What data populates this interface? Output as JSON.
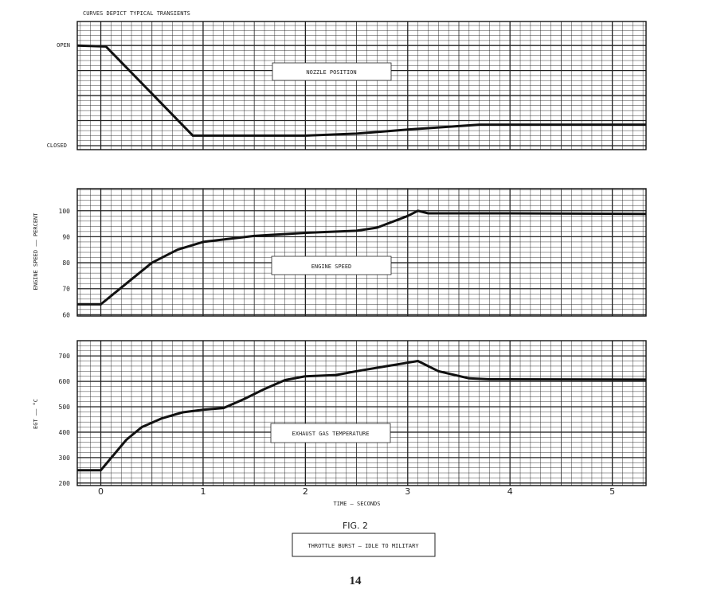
{
  "header_note": "CURVES DEPICT TYPICAL TRANSIENTS",
  "figure_label": "FIG. 2",
  "figure_caption": "THROTTLE BURST — IDLE TO MILITARY",
  "page_number": "14",
  "x_axis": {
    "label": "TIME — SECONDS",
    "ticks": [
      "0",
      "1",
      "2",
      "3",
      "4",
      "5"
    ],
    "xlim": [
      -0.23,
      5.33
    ]
  },
  "chart_data": [
    {
      "type": "line",
      "title": "NOZZLE POSITION",
      "ylabel": "",
      "y_tick_labels": {
        "open": "OPEN",
        "closed": "CLOSED"
      },
      "ylim": [
        -0.04,
        1.24
      ],
      "grid": true,
      "x": [
        -0.23,
        0.05,
        0.9,
        1.5,
        2.0,
        2.5,
        3.0,
        3.7,
        5.33
      ],
      "values": [
        1.0,
        0.99,
        0.1,
        0.1,
        0.1,
        0.12,
        0.16,
        0.21,
        0.21
      ]
    },
    {
      "type": "line",
      "title": "ENGINE SPEED",
      "ylabel": "ENGINE SPEED —— PERCENT",
      "y_ticks": [
        "60",
        "70",
        "80",
        "90",
        "100"
      ],
      "ylim": [
        59.5,
        108.5
      ],
      "grid": true,
      "x": [
        -0.23,
        0.0,
        0.25,
        0.5,
        0.75,
        1.0,
        1.5,
        2.0,
        2.5,
        2.7,
        3.0,
        3.1,
        3.2,
        4.0,
        5.33
      ],
      "values": [
        64,
        64,
        72,
        80,
        85,
        88,
        90.3,
        91.5,
        92.3,
        93.5,
        98,
        100,
        99,
        99,
        98.8
      ]
    },
    {
      "type": "line",
      "title": "EXHAUST GAS TEMPERATURE",
      "ylabel": "EGT —— °C",
      "y_ticks": [
        "200",
        "300",
        "400",
        "500",
        "600",
        "700"
      ],
      "ylim": [
        190,
        760
      ],
      "grid": true,
      "x": [
        -0.23,
        0.0,
        0.25,
        0.4,
        0.6,
        0.8,
        1.0,
        1.2,
        1.4,
        1.6,
        1.8,
        2.0,
        2.3,
        2.5,
        2.8,
        3.1,
        3.3,
        3.6,
        3.8,
        5.33
      ],
      "values": [
        250,
        250,
        370,
        420,
        455,
        478,
        488,
        495,
        530,
        570,
        605,
        620,
        625,
        640,
        660,
        680,
        640,
        612,
        608,
        607
      ]
    }
  ]
}
